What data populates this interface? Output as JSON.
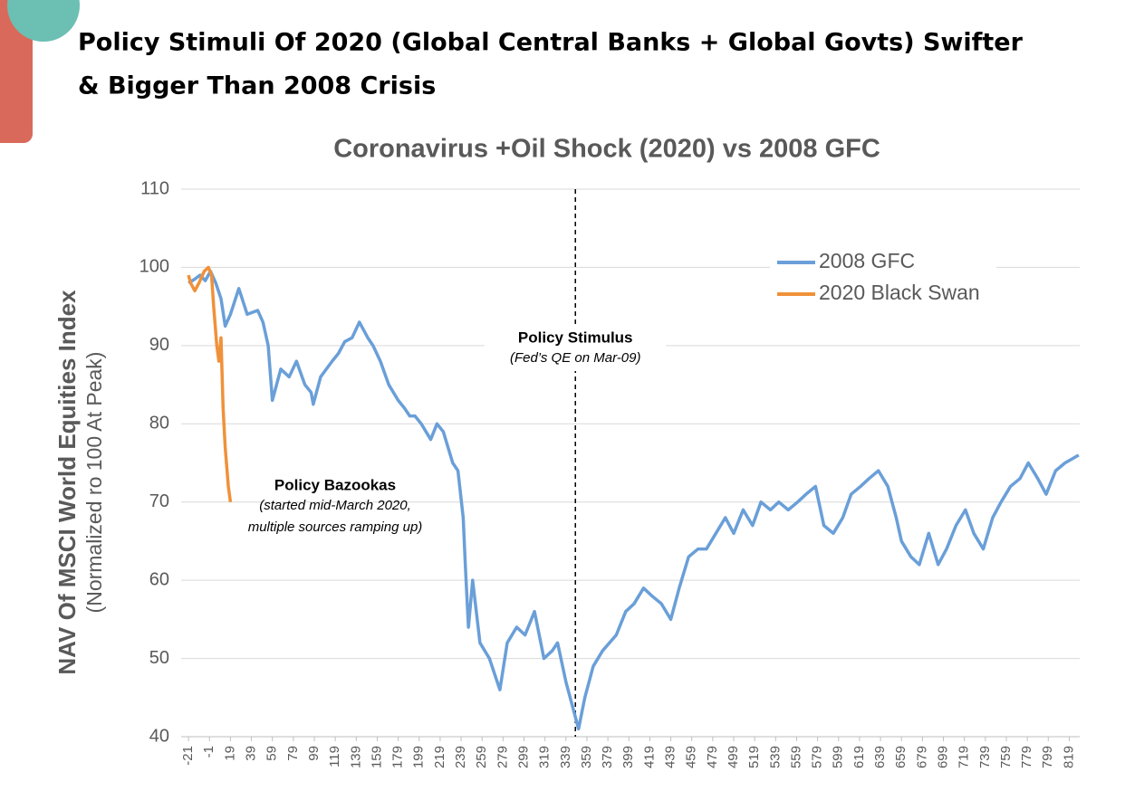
{
  "slide": {
    "title": [
      "Policy Stimuli Of 2020 (Global Central Banks + Global Govts) Swifter",
      "& Bigger Than 2008 Crisis"
    ]
  },
  "chart_data": {
    "type": "line",
    "title": "Coronavirus +Oil Shock (2020) vs 2008 GFC",
    "ylabel": "NAV Of MSCI World Equities Index",
    "ylabel_note": "(Normalized ro 100 At Peak)",
    "xlim": [
      -28,
      829
    ],
    "ylim": [
      40,
      110
    ],
    "xticks": [
      -21,
      -1,
      19,
      39,
      59,
      79,
      99,
      119,
      139,
      159,
      179,
      199,
      219,
      239,
      259,
      279,
      299,
      319,
      339,
      359,
      379,
      399,
      419,
      439,
      459,
      479,
      499,
      519,
      539,
      559,
      579,
      599,
      619,
      639,
      659,
      679,
      699,
      719,
      739,
      759,
      779,
      799,
      819
    ],
    "yticks": [
      40,
      50,
      60,
      70,
      80,
      90,
      100,
      110
    ],
    "grid": true,
    "legend": "upper right",
    "vline": 348,
    "annotations": [
      "Policy Stimulus",
      "(Fed’s QE on Mar-09)",
      "Policy Bazookas",
      "(started mid-March 2020,",
      "multiple sources ramping up)"
    ],
    "series": [
      {
        "name": "2008 GFC",
        "color": "#6a9fd8",
        "x": [
          -21,
          -15,
          -10,
          -5,
          0,
          5,
          10,
          14,
          19,
          27,
          35,
          45,
          50,
          55,
          59,
          67,
          75,
          82,
          90,
          96,
          98,
          105,
          116,
          122,
          128,
          135,
          142,
          150,
          155,
          162,
          170,
          179,
          185,
          190,
          195,
          201,
          210,
          216,
          222,
          231,
          236,
          241,
          243,
          246,
          250,
          257,
          266,
          276,
          283,
          292,
          300,
          309,
          318,
          326,
          331,
          339,
          345,
          351,
          357,
          365,
          374,
          387,
          396,
          404,
          413,
          421,
          430,
          439,
          447,
          456,
          465,
          473,
          482,
          491,
          499,
          508,
          517,
          525,
          534,
          542,
          551,
          560,
          568,
          577,
          585,
          594,
          603,
          611,
          620,
          628,
          637,
          646,
          654,
          659,
          668,
          676,
          685,
          694,
          702,
          711,
          720,
          728,
          737,
          746,
          754,
          763,
          772,
          780,
          789,
          797,
          806,
          815,
          828
        ],
        "values": [
          98,
          98.5,
          99,
          98.3,
          99.5,
          98,
          96,
          92.5,
          94,
          97.3,
          94,
          94.5,
          93,
          90,
          83,
          87,
          86,
          88,
          85,
          84,
          82.5,
          86,
          88,
          89,
          90.5,
          91,
          93,
          91,
          90,
          88,
          85,
          83,
          82,
          81,
          81,
          80,
          78,
          80,
          79,
          75,
          74,
          68,
          62,
          54,
          60,
          52,
          50,
          46,
          52,
          54,
          53,
          56,
          50,
          51,
          52,
          47,
          44,
          41,
          45,
          49,
          51,
          53,
          56,
          57,
          59,
          58,
          57,
          55,
          59,
          63,
          64,
          64,
          66,
          68,
          66,
          69,
          67,
          70,
          69,
          70,
          69,
          70,
          71,
          72,
          67,
          66,
          68,
          71,
          72,
          73,
          74,
          72,
          68,
          65,
          63,
          62,
          66,
          62,
          64,
          67,
          69,
          66,
          64,
          68,
          70,
          72,
          73,
          75,
          73,
          71,
          74,
          75,
          76
        ]
      },
      {
        "name": "2020 Black Swan",
        "color": "#f0913a",
        "x": [
          -21,
          -19,
          -15,
          -11,
          -6,
          -2,
          1,
          3,
          6,
          8,
          10,
          12,
          14,
          17,
          19
        ],
        "values": [
          99,
          98,
          97,
          98,
          99.5,
          100,
          99,
          95,
          90,
          88,
          91,
          82,
          77,
          72,
          70
        ]
      }
    ]
  }
}
